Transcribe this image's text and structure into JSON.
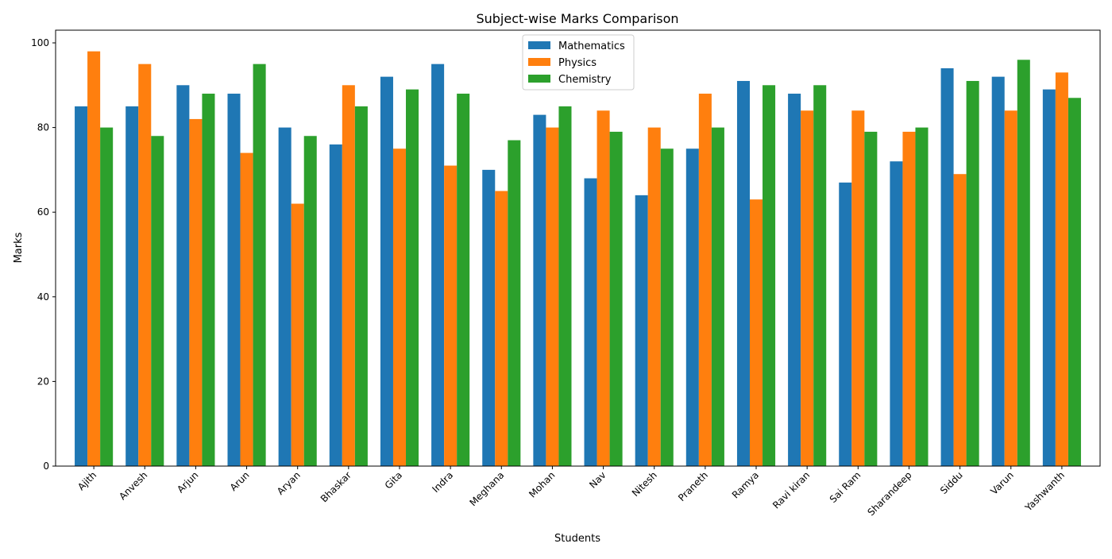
{
  "chart_data": {
    "type": "bar",
    "title": "Subject-wise Marks Comparison",
    "xlabel": "Students",
    "ylabel": "Marks",
    "ylim": [
      0,
      103
    ],
    "yticks": [
      0,
      20,
      40,
      60,
      80,
      100
    ],
    "grid": false,
    "legend_position": "top-center",
    "categories": [
      "Ajith",
      "Anvesh",
      "Arjun",
      "Arun",
      "Aryan",
      "Bhaskar",
      "Gita",
      "Indra",
      "Meghana",
      "Mohan",
      "Nav",
      "Nitesh",
      "Praneth",
      "Ramya",
      "Ravi kiran",
      "Sai Ram",
      "Sharandeep",
      "Siddu",
      "Varun",
      "Yashwanth"
    ],
    "series": [
      {
        "name": "Mathematics",
        "color": "#1f77b4",
        "values": [
          85,
          85,
          90,
          88,
          80,
          76,
          92,
          95,
          70,
          83,
          68,
          64,
          75,
          91,
          88,
          67,
          72,
          94,
          92,
          89
        ]
      },
      {
        "name": "Physics",
        "color": "#ff7f0e",
        "values": [
          98,
          95,
          82,
          74,
          62,
          90,
          75,
          71,
          65,
          80,
          84,
          80,
          88,
          63,
          84,
          84,
          79,
          69,
          84,
          93
        ]
      },
      {
        "name": "Chemistry",
        "color": "#2ca02c",
        "values": [
          80,
          78,
          88,
          95,
          78,
          85,
          89,
          88,
          77,
          85,
          79,
          75,
          80,
          90,
          90,
          79,
          80,
          91,
          96,
          87
        ]
      }
    ]
  }
}
